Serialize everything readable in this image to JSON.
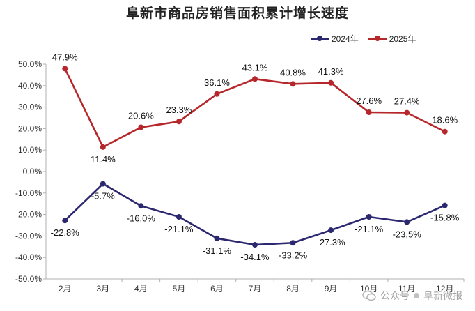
{
  "title": "阜新市商品房销售面积累计增长速度",
  "colors": {
    "s2024": "#2b2870",
    "s2025": "#b5272a",
    "axis": "#b0b0b0",
    "text": "#222222"
  },
  "chart_data": {
    "type": "line",
    "title": "阜新市商品房销售面积累计增长速度",
    "categories": [
      "2月",
      "3月",
      "4月",
      "5月",
      "6月",
      "7月",
      "8月",
      "9月",
      "10月",
      "11月",
      "12月"
    ],
    "yticks": [
      "50.0%",
      "40.0%",
      "30.0%",
      "20.0%",
      "10.0%",
      "0.0%",
      "-10.0%",
      "-20.0%",
      "-30.0%",
      "-40.0%",
      "-50.0%"
    ],
    "ylim": [
      -50,
      50
    ],
    "grid": false,
    "legend_position": "top-right",
    "series": [
      {
        "name": "2024年",
        "color": "#2b2870",
        "values": [
          -22.8,
          -5.7,
          -16.0,
          -21.1,
          -31.1,
          -34.1,
          -33.2,
          -27.3,
          -21.1,
          -23.5,
          -15.8
        ],
        "labels": [
          "-22.8%",
          "-5.7%",
          "-16.0%",
          "-21.1%",
          "-31.1%",
          "-34.1%",
          "-33.2%",
          "-27.3%",
          "-21.1%",
          "-23.5%",
          "-15.8%"
        ]
      },
      {
        "name": "2025年",
        "color": "#b5272a",
        "values": [
          47.9,
          11.4,
          20.6,
          23.3,
          36.1,
          43.1,
          40.8,
          41.3,
          27.6,
          27.4,
          18.6
        ],
        "labels": [
          "47.9%",
          "11.4%",
          "20.6%",
          "23.3%",
          "36.1%",
          "43.1%",
          "40.8%",
          "41.3%",
          "27.6%",
          "27.4%",
          "18.6%"
        ]
      }
    ]
  },
  "watermark": {
    "left": "公众号",
    "right": "阜新微报"
  }
}
